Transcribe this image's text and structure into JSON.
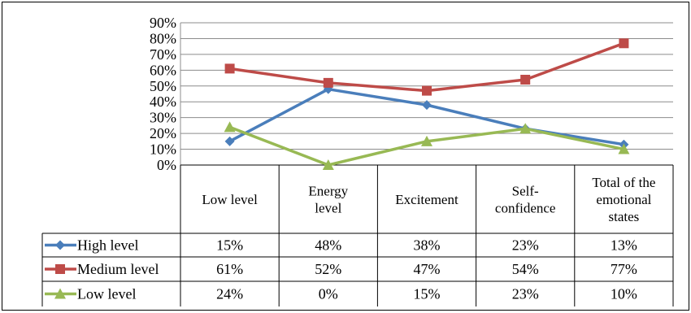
{
  "chart_data": {
    "type": "line",
    "categories": [
      [
        "Low level"
      ],
      [
        "Energy",
        "level"
      ],
      [
        "Excitement"
      ],
      [
        "Self-",
        "confidence"
      ],
      [
        "Total of the",
        "emotional",
        "states"
      ]
    ],
    "y_ticks": [
      "0%",
      "10%",
      "20%",
      "30%",
      "40%",
      "50%",
      "60%",
      "70%",
      "80%",
      "90%"
    ],
    "ylim": [
      0,
      90
    ],
    "grid": true,
    "legend_placement": "data-table",
    "series": [
      {
        "name": "High level",
        "values": [
          15,
          48,
          38,
          23,
          13
        ],
        "labels": [
          "15%",
          "48%",
          "38%",
          "23%",
          "13%"
        ],
        "color": "#4a7ebb",
        "marker": "diamond"
      },
      {
        "name": "Medium level",
        "values": [
          61,
          52,
          47,
          54,
          77
        ],
        "labels": [
          "61%",
          "52%",
          "47%",
          "54%",
          "77%"
        ],
        "color": "#be4b48",
        "marker": "square"
      },
      {
        "name": "Low level",
        "values": [
          24,
          0,
          15,
          23,
          10
        ],
        "labels": [
          "24%",
          "0%",
          "15%",
          "23%",
          "10%"
        ],
        "color": "#98b954",
        "marker": "triangle"
      }
    ]
  }
}
